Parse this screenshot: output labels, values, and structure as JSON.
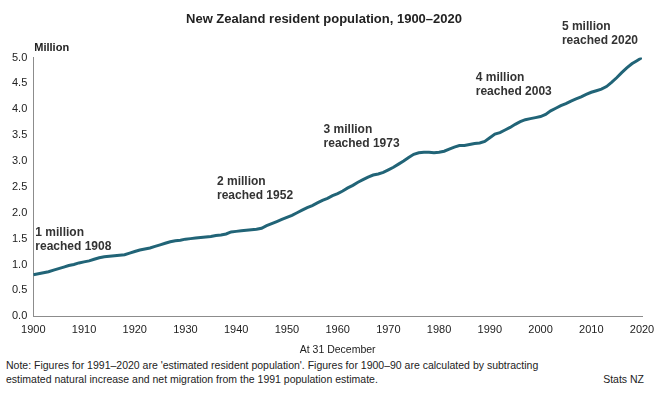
{
  "chart_data": {
    "type": "line",
    "title": "New Zealand resident population, 1900–2020",
    "xlabel": "At 31 December",
    "ylabel": "Million",
    "x": [
      1900,
      1901,
      1902,
      1903,
      1904,
      1905,
      1906,
      1907,
      1908,
      1909,
      1910,
      1911,
      1912,
      1913,
      1914,
      1915,
      1916,
      1917,
      1918,
      1919,
      1920,
      1921,
      1922,
      1923,
      1924,
      1925,
      1926,
      1927,
      1928,
      1929,
      1930,
      1931,
      1932,
      1933,
      1934,
      1935,
      1936,
      1937,
      1938,
      1939,
      1940,
      1941,
      1942,
      1943,
      1944,
      1945,
      1946,
      1947,
      1948,
      1949,
      1950,
      1951,
      1952,
      1953,
      1954,
      1955,
      1956,
      1957,
      1958,
      1959,
      1960,
      1961,
      1962,
      1963,
      1964,
      1965,
      1966,
      1967,
      1968,
      1969,
      1970,
      1971,
      1972,
      1973,
      1974,
      1975,
      1976,
      1977,
      1978,
      1979,
      1980,
      1981,
      1982,
      1983,
      1984,
      1985,
      1986,
      1987,
      1988,
      1989,
      1990,
      1991,
      1992,
      1993,
      1994,
      1995,
      1996,
      1997,
      1998,
      1999,
      2000,
      2001,
      2002,
      2003,
      2004,
      2005,
      2006,
      2007,
      2008,
      2009,
      2010,
      2011,
      2012,
      2013,
      2014,
      2015,
      2016,
      2017,
      2018,
      2019,
      2020
    ],
    "values": [
      0.8,
      0.82,
      0.84,
      0.86,
      0.89,
      0.92,
      0.95,
      0.98,
      1.0,
      1.03,
      1.05,
      1.07,
      1.1,
      1.13,
      1.15,
      1.16,
      1.17,
      1.18,
      1.19,
      1.22,
      1.25,
      1.28,
      1.3,
      1.32,
      1.35,
      1.38,
      1.41,
      1.44,
      1.46,
      1.47,
      1.49,
      1.5,
      1.51,
      1.52,
      1.53,
      1.54,
      1.56,
      1.57,
      1.59,
      1.63,
      1.64,
      1.65,
      1.66,
      1.67,
      1.68,
      1.7,
      1.75,
      1.79,
      1.83,
      1.87,
      1.91,
      1.95,
      2.0,
      2.05,
      2.1,
      2.14,
      2.19,
      2.24,
      2.28,
      2.33,
      2.37,
      2.42,
      2.48,
      2.53,
      2.59,
      2.64,
      2.69,
      2.73,
      2.75,
      2.78,
      2.83,
      2.88,
      2.94,
      3.0,
      3.07,
      3.13,
      3.16,
      3.17,
      3.17,
      3.16,
      3.17,
      3.19,
      3.23,
      3.27,
      3.3,
      3.3,
      3.32,
      3.34,
      3.35,
      3.38,
      3.45,
      3.52,
      3.55,
      3.6,
      3.65,
      3.71,
      3.76,
      3.8,
      3.82,
      3.84,
      3.86,
      3.9,
      3.97,
      4.02,
      4.07,
      4.11,
      4.16,
      4.2,
      4.24,
      4.29,
      4.33,
      4.36,
      4.39,
      4.44,
      4.52,
      4.61,
      4.71,
      4.8,
      4.88,
      4.94,
      5.0
    ],
    "color": "#216477",
    "xlim": [
      1900,
      2020
    ],
    "xticks": [
      1900,
      1910,
      1920,
      1930,
      1940,
      1950,
      1960,
      1970,
      1980,
      1990,
      2000,
      2010,
      2020
    ],
    "ylim": [
      0,
      5
    ],
    "yticks": [
      {
        "value": 0,
        "label": "0.0"
      },
      {
        "value": 0.5,
        "label": "0.5"
      },
      {
        "value": 1,
        "label": "1.0"
      },
      {
        "value": 1.5,
        "label": "1.5"
      },
      {
        "value": 2,
        "label": "2.0"
      },
      {
        "value": 2.5,
        "label": "2.5"
      },
      {
        "value": 3,
        "label": "3.0"
      },
      {
        "value": 3.5,
        "label": "3.5"
      },
      {
        "value": 4,
        "label": "4.0"
      },
      {
        "value": 4.5,
        "label": "4.5"
      },
      {
        "value": 5,
        "label": "5.0"
      }
    ],
    "grid": false,
    "annotations": [
      {
        "text": [
          "1 million",
          "reached 1908"
        ],
        "x": 1908,
        "y": 1.0
      },
      {
        "text": [
          "2 million",
          "reached 1952"
        ],
        "x": 1952,
        "y": 2.0
      },
      {
        "text": [
          "3 million",
          "reached 1973"
        ],
        "x": 1973,
        "y": 3.0
      },
      {
        "text": [
          "4 million",
          "reached 2003"
        ],
        "x": 2003,
        "y": 4.0
      },
      {
        "text": [
          "5 million",
          "reached 2020"
        ],
        "x": 2020,
        "y": 5.0
      }
    ],
    "note": [
      "Note:  Figures for 1991–2020 are 'estimated resident population'. Figures for 1900–90 are calculated by subtracting",
      "estimated natural increase and net migration from the 1991 population estimate."
    ],
    "source": "Stats NZ"
  }
}
